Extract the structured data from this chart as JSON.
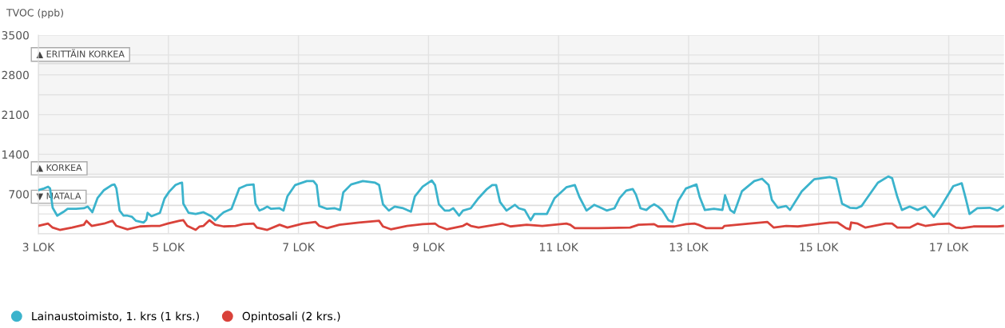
{
  "chart_data": {
    "type": "line",
    "ylabel": "TVOC (ppb)",
    "xlim": [
      3,
      17.85
    ],
    "xticks": [
      {
        "value": 3,
        "label": "3 LOK"
      },
      {
        "value": 5,
        "label": "5 LOK"
      },
      {
        "value": 7,
        "label": "7 LOK"
      },
      {
        "value": 9,
        "label": "9 LOK"
      },
      {
        "value": 11,
        "label": "11 LOK"
      },
      {
        "value": 13,
        "label": "13 LOK"
      },
      {
        "value": 15,
        "label": "15 LOK"
      },
      {
        "value": 17,
        "label": "17 LOK"
      }
    ],
    "ylim": [
      0,
      3500
    ],
    "yticks": [
      {
        "value": 0,
        "label": null
      },
      {
        "value": 350,
        "label": null
      },
      700,
      {
        "value": 1050,
        "label": null
      },
      1400,
      {
        "value": 1750,
        "label": null
      },
      2100,
      {
        "value": 2450,
        "label": null
      },
      2800,
      {
        "value": 3150,
        "label": null
      },
      3500
    ],
    "grid": true,
    "legend": "bottom left",
    "marker": "none",
    "line_style": "solid",
    "bands": [
      {
        "axis": "y",
        "from": 1000,
        "to": 3500,
        "color": "#f5f5f5"
      }
    ],
    "ref_lines": [
      {
        "axis": "y",
        "value": 3000,
        "label": "▲ ERITTÄIN KORKEA",
        "color": "#dddddd"
      },
      {
        "axis": "y",
        "value": 1000,
        "label": "▲ KORKEA",
        "color": "#dddddd"
      },
      {
        "axis": "y",
        "value": 500,
        "label": "▼ MATALA",
        "color": "#dddddd"
      }
    ],
    "series": [
      {
        "name": "Lainaustoimisto, 1. krs (1 krs.)",
        "color": "#3bb3cc",
        "x": [
          3.0,
          3.09,
          3.15,
          3.18,
          3.22,
          3.29,
          3.39,
          3.45,
          3.58,
          3.7,
          3.76,
          3.83,
          3.91,
          4.01,
          4.13,
          4.17,
          4.2,
          4.25,
          4.31,
          4.37,
          4.44,
          4.5,
          4.62,
          4.66,
          4.68,
          4.74,
          4.87,
          4.94,
          5.01,
          5.11,
          5.17,
          5.21,
          5.23,
          5.31,
          5.42,
          5.54,
          5.66,
          5.72,
          5.79,
          5.85,
          5.97,
          6.09,
          6.21,
          6.31,
          6.34,
          6.4,
          6.46,
          6.52,
          6.58,
          6.71,
          6.77,
          6.83,
          6.95,
          7.13,
          7.23,
          7.28,
          7.32,
          7.44,
          7.56,
          7.64,
          7.69,
          7.81,
          7.99,
          8.18,
          8.24,
          8.3,
          8.39,
          8.48,
          8.61,
          8.73,
          8.79,
          8.91,
          9.05,
          9.1,
          9.16,
          9.25,
          9.32,
          9.38,
          9.47,
          9.53,
          9.65,
          9.77,
          9.9,
          9.98,
          10.04,
          10.1,
          10.2,
          10.33,
          10.39,
          10.48,
          10.57,
          10.63,
          10.82,
          10.94,
          11.12,
          11.25,
          11.32,
          11.43,
          11.55,
          11.67,
          11.74,
          11.86,
          11.94,
          12.04,
          12.14,
          12.19,
          12.26,
          12.35,
          12.41,
          12.47,
          12.53,
          12.59,
          12.69,
          12.75,
          12.84,
          12.96,
          13.12,
          13.17,
          13.25,
          13.39,
          13.52,
          13.56,
          13.64,
          13.7,
          13.82,
          14.01,
          14.13,
          14.23,
          14.28,
          14.37,
          14.5,
          14.56,
          14.74,
          14.93,
          15.17,
          15.27,
          15.36,
          15.48,
          15.58,
          15.66,
          15.72,
          15.91,
          16.07,
          16.13,
          16.21,
          16.28,
          16.4,
          16.52,
          16.64,
          16.77,
          16.87,
          17.07,
          17.2,
          17.26,
          17.32,
          17.44,
          17.63,
          17.75,
          17.85
        ],
        "values": [
          770,
          800,
          830,
          800,
          460,
          320,
          390,
          440,
          440,
          450,
          480,
          380,
          630,
          770,
          860,
          870,
          800,
          410,
          320,
          320,
          300,
          230,
          200,
          250,
          370,
          310,
          370,
          620,
          740,
          860,
          890,
          900,
          530,
          370,
          350,
          380,
          310,
          240,
          320,
          380,
          440,
          800,
          860,
          870,
          530,
          410,
          440,
          480,
          440,
          450,
          410,
          660,
          860,
          930,
          930,
          860,
          490,
          440,
          450,
          420,
          730,
          870,
          930,
          900,
          860,
          520,
          410,
          480,
          450,
          390,
          660,
          830,
          940,
          860,
          520,
          410,
          410,
          450,
          320,
          410,
          450,
          630,
          790,
          860,
          860,
          560,
          410,
          510,
          450,
          420,
          240,
          350,
          350,
          630,
          820,
          860,
          650,
          410,
          510,
          450,
          410,
          450,
          630,
          760,
          790,
          690,
          450,
          420,
          480,
          520,
          480,
          420,
          240,
          210,
          580,
          800,
          870,
          650,
          420,
          440,
          420,
          680,
          420,
          370,
          750,
          930,
          970,
          860,
          600,
          460,
          490,
          420,
          750,
          960,
          1000,
          970,
          530,
          460,
          450,
          490,
          590,
          900,
          1010,
          980,
          650,
          420,
          480,
          420,
          480,
          300,
          460,
          840,
          890,
          630,
          350,
          450,
          460,
          410,
          490
        ]
      },
      {
        "name": "Opintosali (2 krs.)",
        "color": "#d9423a",
        "x": [
          3.0,
          3.15,
          3.22,
          3.33,
          3.52,
          3.7,
          3.74,
          3.82,
          4.01,
          4.14,
          4.2,
          4.37,
          4.56,
          4.74,
          4.87,
          4.99,
          5.17,
          5.23,
          5.29,
          5.42,
          5.48,
          5.54,
          5.63,
          5.72,
          5.85,
          6.03,
          6.15,
          6.31,
          6.36,
          6.52,
          6.71,
          6.83,
          7.07,
          7.26,
          7.32,
          7.44,
          7.63,
          7.93,
          8.24,
          8.3,
          8.42,
          8.67,
          8.91,
          9.1,
          9.16,
          9.28,
          9.53,
          9.59,
          9.65,
          9.77,
          10.14,
          10.26,
          10.51,
          10.75,
          11.12,
          11.18,
          11.25,
          11.61,
          12.1,
          12.23,
          12.47,
          12.53,
          12.78,
          12.96,
          13.09,
          13.15,
          13.27,
          13.52,
          13.55,
          13.94,
          14.21,
          14.31,
          14.5,
          14.68,
          15.17,
          15.29,
          15.42,
          15.48,
          15.5,
          15.6,
          15.72,
          16.03,
          16.13,
          16.21,
          16.4,
          16.52,
          16.64,
          16.83,
          17.01,
          17.11,
          17.2,
          17.38,
          17.75,
          17.85
        ],
        "values": [
          140,
          180,
          110,
          70,
          110,
          160,
          230,
          140,
          180,
          230,
          140,
          80,
          130,
          140,
          140,
          180,
          230,
          240,
          140,
          70,
          130,
          140,
          240,
          160,
          130,
          140,
          170,
          180,
          110,
          70,
          160,
          110,
          180,
          210,
          140,
          100,
          160,
          200,
          230,
          130,
          80,
          140,
          170,
          180,
          130,
          80,
          140,
          180,
          140,
          110,
          180,
          130,
          160,
          140,
          180,
          160,
          100,
          100,
          110,
          160,
          170,
          130,
          130,
          170,
          180,
          160,
          100,
          100,
          140,
          180,
          210,
          110,
          140,
          130,
          200,
          200,
          100,
          80,
          200,
          180,
          110,
          180,
          180,
          110,
          110,
          180,
          140,
          170,
          180,
          110,
          100,
          130,
          130,
          140
        ]
      }
    ]
  }
}
